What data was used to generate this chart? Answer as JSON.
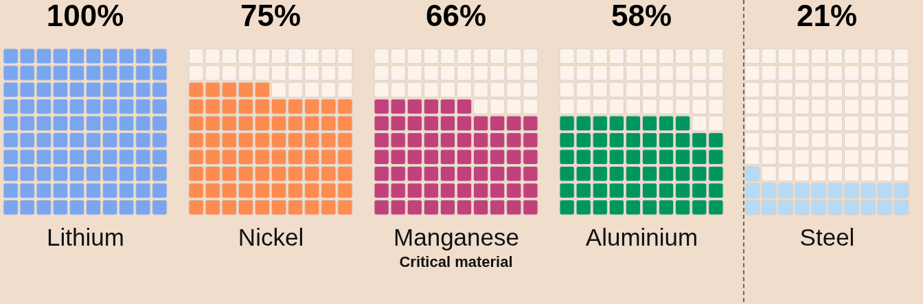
{
  "chart_data": {
    "type": "other",
    "xlabel": "Critical material",
    "categories": [
      "Lithium",
      "Nickel",
      "Manganese",
      "Aluminium",
      "Steel"
    ],
    "values": [
      100,
      75,
      66,
      58,
      21
    ],
    "value_labels": [
      "100%",
      "75%",
      "66%",
      "58%",
      "21%"
    ],
    "colors": [
      "#7aa6ef",
      "#fe8c50",
      "#c2417a",
      "#00975f",
      "#b6daf4"
    ]
  }
}
